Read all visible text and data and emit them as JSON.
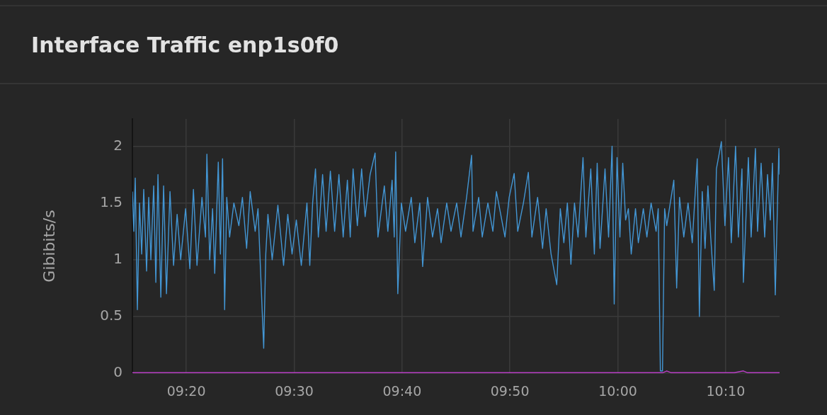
{
  "chart_data": {
    "type": "line",
    "title": "Interface Traffic enp1s0f0",
    "ylabel": "Gibibits/s",
    "xlim": [
      9.25,
      10.25
    ],
    "ylim": [
      0,
      2.24
    ],
    "xticks": [
      {
        "value": 9.3333,
        "label": "09:20"
      },
      {
        "value": 9.5,
        "label": "09:30"
      },
      {
        "value": 9.6667,
        "label": "09:40"
      },
      {
        "value": 9.8333,
        "label": "09:50"
      },
      {
        "value": 10,
        "label": "10:00"
      },
      {
        "value": 10.1667,
        "label": "10:10"
      }
    ],
    "yticks": [
      0,
      0.5,
      1,
      1.5,
      2
    ],
    "grid": true,
    "legend": false,
    "marker": "none",
    "line_style": "solid",
    "series": [
      {
        "color": "#4396d4",
        "x": [
          9.25,
          9.2522,
          9.2544,
          9.2577,
          9.261,
          9.2643,
          9.2675,
          9.2719,
          9.2752,
          9.2785,
          9.2829,
          9.2862,
          9.2895,
          9.2939,
          9.2982,
          9.3026,
          9.3081,
          9.3136,
          9.3191,
          9.3246,
          9.3322,
          9.3388,
          9.3443,
          9.3498,
          9.3575,
          9.3629,
          9.3651,
          9.3695,
          9.3739,
          9.3772,
          9.3827,
          9.386,
          9.3893,
          9.3925,
          9.3958,
          9.4002,
          9.4068,
          9.4145,
          9.42,
          9.4265,
          9.432,
          9.4397,
          9.4441,
          9.4529,
          9.4561,
          9.4594,
          9.466,
          9.4748,
          9.4836,
          9.4901,
          9.4967,
          9.5033,
          9.511,
          9.5197,
          9.5241,
          9.5285,
          9.5329,
          9.5373,
          9.5439,
          9.5493,
          9.5559,
          9.5625,
          9.5691,
          9.5757,
          9.5822,
          9.5866,
          9.591,
          9.5976,
          9.6042,
          9.6096,
          9.6173,
          9.625,
          9.6294,
          9.6393,
          9.6447,
          9.6513,
          9.6546,
          9.6568,
          9.6601,
          9.6656,
          9.6721,
          9.6809,
          9.6864,
          9.6941,
          9.6985,
          9.7061,
          9.7138,
          9.7215,
          9.727,
          9.7357,
          9.7423,
          9.7511,
          9.7577,
          9.7664,
          9.7741,
          9.7763,
          9.7851,
          9.7906,
          9.7993,
          9.807,
          9.8125,
          9.8257,
          9.8322,
          9.8399,
          9.8454,
          9.8542,
          9.8618,
          9.8673,
          9.8761,
          9.8838,
          9.8893,
          9.8969,
          9.9057,
          9.9112,
          9.9167,
          9.9221,
          9.9276,
          9.9331,
          9.9386,
          9.9463,
          9.9507,
          9.9583,
          9.9638,
          9.9682,
          9.9726,
          9.9803,
          9.9858,
          9.9912,
          9.9945,
          9.9989,
          10.0033,
          10.0077,
          10.0121,
          10.0164,
          10.0208,
          10.0274,
          10.0318,
          10.0395,
          10.045,
          10.0515,
          10.0592,
          10.0625,
          10.0658,
          10.0691,
          10.0724,
          10.0757,
          10.0866,
          10.091,
          10.0954,
          10.102,
          10.1086,
          10.1151,
          10.1228,
          10.1261,
          10.1305,
          10.1349,
          10.1393,
          10.1436,
          10.1491,
          10.1524,
          10.1601,
          10.1656,
          10.1711,
          10.1754,
          10.182,
          10.1864,
          10.1919,
          10.1941,
          10.2018,
          10.2061,
          10.2127,
          10.216,
          10.2215,
          10.227,
          10.2314,
          10.2357,
          10.239,
          10.2434,
          10.2489,
          10.25
        ],
        "values": [
          1.6,
          1.25,
          1.72,
          0.56,
          1.5,
          1.05,
          1.62,
          0.9,
          1.55,
          1.0,
          1.65,
          0.8,
          1.75,
          0.67,
          1.65,
          0.7,
          1.6,
          0.95,
          1.4,
          1.0,
          1.45,
          0.92,
          1.62,
          0.95,
          1.55,
          1.2,
          1.93,
          1.0,
          1.45,
          0.88,
          1.86,
          1.05,
          1.89,
          0.56,
          1.55,
          1.2,
          1.5,
          1.3,
          1.55,
          1.1,
          1.6,
          1.25,
          1.45,
          0.22,
          1.05,
          1.4,
          1.0,
          1.48,
          0.95,
          1.4,
          1.05,
          1.35,
          0.95,
          1.5,
          0.95,
          1.5,
          1.8,
          1.2,
          1.75,
          1.25,
          1.78,
          1.25,
          1.75,
          1.2,
          1.7,
          1.2,
          1.8,
          1.3,
          1.8,
          1.38,
          1.75,
          1.94,
          1.2,
          1.65,
          1.25,
          1.7,
          1.2,
          1.95,
          0.7,
          1.5,
          1.25,
          1.55,
          1.15,
          1.5,
          0.94,
          1.55,
          1.2,
          1.45,
          1.15,
          1.5,
          1.25,
          1.5,
          1.2,
          1.55,
          1.92,
          1.25,
          1.55,
          1.2,
          1.5,
          1.25,
          1.6,
          1.2,
          1.55,
          1.76,
          1.25,
          1.5,
          1.77,
          1.2,
          1.55,
          1.1,
          1.45,
          1.05,
          0.78,
          1.45,
          1.15,
          1.5,
          0.96,
          1.5,
          1.2,
          1.9,
          1.2,
          1.8,
          1.05,
          1.85,
          1.1,
          1.8,
          1.2,
          2.0,
          0.61,
          1.9,
          1.2,
          1.85,
          1.35,
          1.45,
          1.05,
          1.45,
          1.15,
          1.45,
          1.2,
          1.5,
          1.25,
          1.45,
          0.02,
          0.02,
          1.45,
          1.3,
          1.7,
          0.75,
          1.55,
          1.2,
          1.5,
          1.15,
          1.89,
          0.5,
          1.6,
          1.1,
          1.65,
          1.2,
          0.73,
          1.8,
          2.04,
          1.3,
          1.9,
          1.15,
          2.0,
          1.2,
          1.8,
          0.8,
          1.9,
          1.2,
          1.98,
          1.25,
          1.85,
          1.2,
          1.75,
          1.35,
          1.85,
          0.69,
          1.98,
          1.75
        ]
      },
      {
        "color": "#b83fc4",
        "x": [
          9.25,
          9.5,
          9.75,
          10.0,
          10.07,
          10.0757,
          10.082,
          10.18,
          10.1941,
          10.2,
          10.25
        ],
        "values": [
          0.005,
          0.005,
          0.005,
          0.005,
          0.005,
          0.02,
          0.005,
          0.005,
          0.02,
          0.005,
          0.005
        ]
      }
    ]
  }
}
